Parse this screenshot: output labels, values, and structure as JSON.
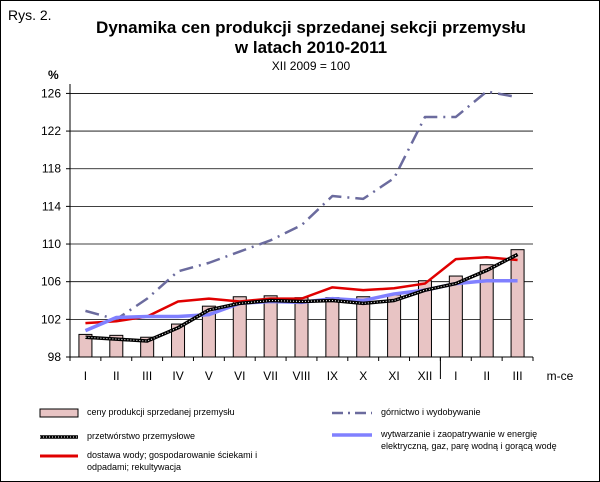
{
  "figure_label": "Rys. 2.",
  "title_line1": "Dynamika cen produkcji sprzedanej sekcji przemysłu",
  "title_line2": "w latach 2010-2011",
  "subtitle": "XII 2009 = 100",
  "ylabel": "%",
  "xlabel": "m-ce",
  "colors": {
    "bars_fill": "#e8c4c4",
    "bars_stroke": "#000000",
    "mining": "#6b6b9e",
    "manufacturing": "#000000",
    "electricity": "#8080ff",
    "water": "#e00000"
  },
  "chart_data": {
    "type": "bar",
    "categories": [
      "I",
      "II",
      "III",
      "IV",
      "V",
      "VI",
      "VII",
      "VIII",
      "IX",
      "X",
      "XI",
      "XII",
      "I",
      "II",
      "III"
    ],
    "ylim": [
      98,
      127
    ],
    "yticks": [
      98,
      102,
      106,
      110,
      114,
      118,
      122,
      126
    ],
    "grid": true,
    "legend_position": "bottom",
    "series": [
      {
        "name": "ceny produkcji sprzedanej przemysłu",
        "type": "bar",
        "values": [
          100.4,
          100.3,
          100.1,
          101.5,
          103.4,
          104.4,
          104.5,
          104.3,
          104.3,
          104.4,
          104.6,
          106.1,
          106.6,
          107.8,
          109.4
        ]
      },
      {
        "name": "górnictwo i wydobywanie",
        "type": "line",
        "values": [
          102.9,
          102.0,
          104.2,
          107.1,
          108.0,
          109.2,
          110.4,
          112.0,
          115.1,
          114.8,
          117.0,
          123.5,
          123.5,
          126.2,
          125.6
        ]
      },
      {
        "name": "przetwórstwo przemysłowe",
        "type": "line",
        "values": [
          100.1,
          99.9,
          99.7,
          101.1,
          103.0,
          103.7,
          104.0,
          103.9,
          104.0,
          103.7,
          104.0,
          105.1,
          105.8,
          107.2,
          108.9
        ]
      },
      {
        "name": "wytwarzanie i zaopatrywanie w energię elektryczną, gaz, parę wodną i gorącą wodę",
        "type": "line",
        "values": [
          100.8,
          102.2,
          102.3,
          102.3,
          102.5,
          103.7,
          103.9,
          103.8,
          104.2,
          104.0,
          104.7,
          105.1,
          105.8,
          106.1,
          106.1
        ]
      },
      {
        "name": "dostawa wody; gospodarowanie ściekami i odpadami; rekultywacja",
        "type": "line",
        "values": [
          101.6,
          101.8,
          102.3,
          103.9,
          104.2,
          103.9,
          104.2,
          104.2,
          105.4,
          105.1,
          105.3,
          105.8,
          108.4,
          108.6,
          108.3
        ]
      }
    ]
  }
}
